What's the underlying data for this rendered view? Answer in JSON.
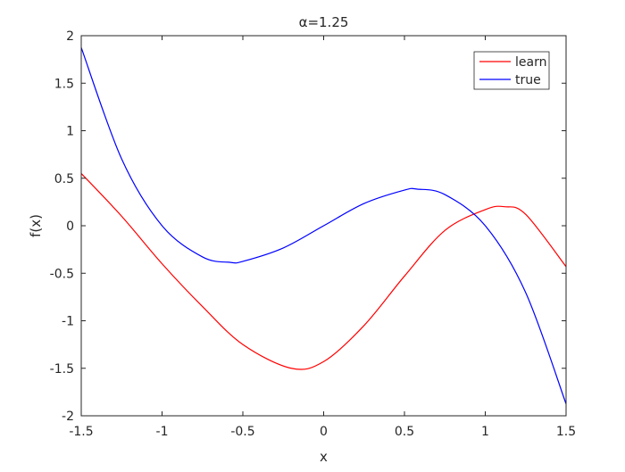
{
  "chart_data": {
    "type": "line",
    "title": "α=1.25",
    "xlabel": "x",
    "ylabel": "f(x)",
    "xlim": [
      -1.5,
      1.5
    ],
    "ylim": [
      -2,
      2
    ],
    "xticks": [
      -1.5,
      -1,
      -0.5,
      0,
      0.5,
      1,
      1.5
    ],
    "xtick_labels": [
      "-1.5",
      "-1",
      "-0.5",
      "0",
      "0.5",
      "1",
      "1.5"
    ],
    "yticks": [
      -2,
      -1.5,
      -1,
      -0.5,
      0,
      0.5,
      1,
      1.5,
      2
    ],
    "ytick_labels": [
      "-2",
      "-1.5",
      "-1",
      "-0.5",
      "0",
      "0.5",
      "1",
      "1.5",
      "2"
    ],
    "grid": false,
    "legend_position": "top-right",
    "series": [
      {
        "name": "learn",
        "color": "#ff0000",
        "x": [
          -1.5,
          -1.25,
          -1.0,
          -0.75,
          -0.5,
          -0.2,
          0.0,
          0.25,
          0.5,
          0.75,
          1.0,
          1.12,
          1.25,
          1.5
        ],
        "y": [
          0.55,
          0.1,
          -0.4,
          -0.85,
          -1.25,
          -1.5,
          -1.43,
          -1.05,
          -0.53,
          -0.05,
          0.17,
          0.2,
          0.12,
          -0.43
        ]
      },
      {
        "name": "true",
        "color": "#0000ff",
        "x": [
          -1.5,
          -1.25,
          -1.0,
          -0.75,
          -0.58,
          -0.5,
          -0.25,
          0.0,
          0.25,
          0.5,
          0.58,
          0.75,
          1.0,
          1.25,
          1.5
        ],
        "y": [
          1.875,
          0.703,
          0.0,
          -0.328,
          -0.385,
          -0.375,
          -0.234,
          0.0,
          0.234,
          0.375,
          0.385,
          0.328,
          0.0,
          -0.703,
          -1.875
        ]
      }
    ]
  }
}
